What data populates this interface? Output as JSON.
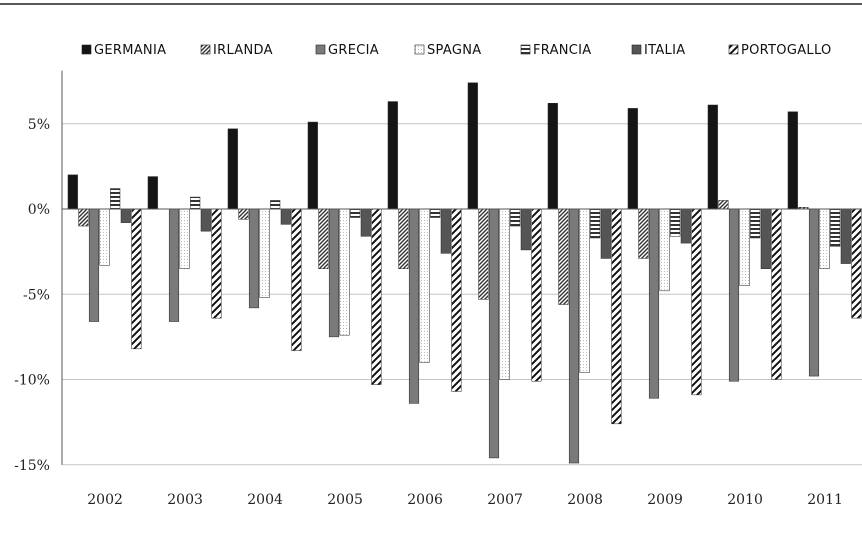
{
  "chart_data": {
    "type": "bar",
    "title": "",
    "xlabel": "",
    "ylabel": "",
    "ylim": [
      -15,
      8
    ],
    "yticks": [
      5,
      0,
      -5,
      -10,
      -15
    ],
    "ytick_labels": [
      "5%",
      "0%",
      "-5%",
      "-10%",
      "-15%"
    ],
    "grid": true,
    "legend_position": "top",
    "categories": [
      "2002",
      "2003",
      "2004",
      "2005",
      "2006",
      "2007",
      "2008",
      "2009",
      "2010",
      "2011"
    ],
    "series": [
      {
        "name": "GERMANIA",
        "fill": "solid-black",
        "values": [
          2.0,
          1.9,
          4.7,
          5.1,
          6.3,
          7.4,
          6.2,
          5.9,
          6.1,
          5.7
        ]
      },
      {
        "name": "IRLANDA",
        "fill": "diagonal-dense",
        "values": [
          -1.0,
          0.0,
          -0.6,
          -3.5,
          -3.5,
          -5.3,
          -5.6,
          -2.9,
          0.5,
          0.1
        ]
      },
      {
        "name": "GRECIA",
        "fill": "solid-gray",
        "values": [
          -6.6,
          -6.6,
          -5.8,
          -7.5,
          -11.4,
          -14.6,
          -14.9,
          -11.1,
          -10.1,
          -9.8
        ]
      },
      {
        "name": "SPAGNA",
        "fill": "white-dotted",
        "values": [
          -3.3,
          -3.5,
          -5.2,
          -7.4,
          -9.0,
          -10.0,
          -9.6,
          -4.8,
          -4.5,
          -3.5
        ]
      },
      {
        "name": "FRANCIA",
        "fill": "horizontal-stripes",
        "values": [
          1.2,
          0.7,
          0.5,
          -0.5,
          -0.5,
          -1.0,
          -1.7,
          -1.6,
          -1.7,
          -2.2
        ]
      },
      {
        "name": "ITALIA",
        "fill": "solid-darkgray",
        "values": [
          -0.8,
          -1.3,
          -0.9,
          -1.6,
          -2.6,
          -2.4,
          -2.9,
          -2.0,
          -3.5,
          -3.2
        ]
      },
      {
        "name": "PORTOGALLO",
        "fill": "diagonal-wide",
        "values": [
          -8.2,
          -6.4,
          -8.3,
          -10.3,
          -10.7,
          -10.1,
          -12.6,
          -10.9,
          -10.0,
          -6.4
        ]
      }
    ]
  }
}
